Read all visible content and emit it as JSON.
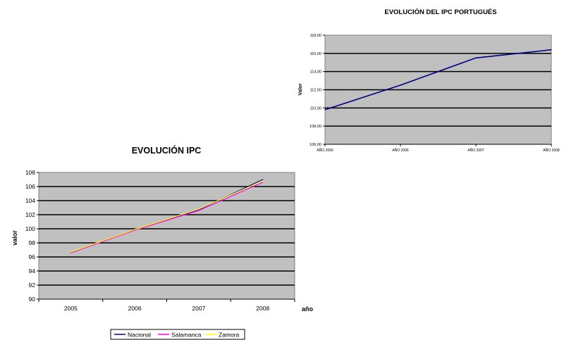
{
  "chart_data": [
    {
      "type": "line",
      "title": "EVOLUCIÓN DEL IPC PORTUGUÉS",
      "xlabel": "",
      "ylabel": "Valor",
      "categories": [
        "AÑO 2005",
        "AÑO 2006",
        "AÑO 2007",
        "AÑO 2008"
      ],
      "series": [
        {
          "values": [
            109.8,
            112.5,
            115.5,
            116.4
          ],
          "color": "#000080"
        }
      ],
      "ylim": [
        106,
        118
      ],
      "yticks": [
        "106,00",
        "108,00",
        "110,00",
        "112,00",
        "114,00",
        "116,00",
        "118,00"
      ],
      "grid": true,
      "legend": "none"
    },
    {
      "type": "line",
      "title": "EVOLUCIÓN IPC",
      "xlabel": "año",
      "ylabel": "valor",
      "categories": [
        "2005",
        "2006",
        "2007",
        "2008"
      ],
      "series": [
        {
          "name": "Nacional",
          "values": [
            96.6,
            99.9,
            102.7,
            107.0
          ],
          "color": "#000080"
        },
        {
          "name": "Salamanca",
          "values": [
            96.6,
            99.8,
            102.6,
            106.6
          ],
          "color": "#ff00ff"
        },
        {
          "name": "Zamora",
          "values": [
            96.7,
            99.9,
            102.8,
            106.8
          ],
          "color": "#ffff00"
        }
      ],
      "ylim": [
        90,
        108
      ],
      "yticks": [
        "90",
        "92",
        "94",
        "96",
        "98",
        "100",
        "102",
        "104",
        "106",
        "108"
      ],
      "grid": true,
      "legend": "bottom"
    }
  ]
}
